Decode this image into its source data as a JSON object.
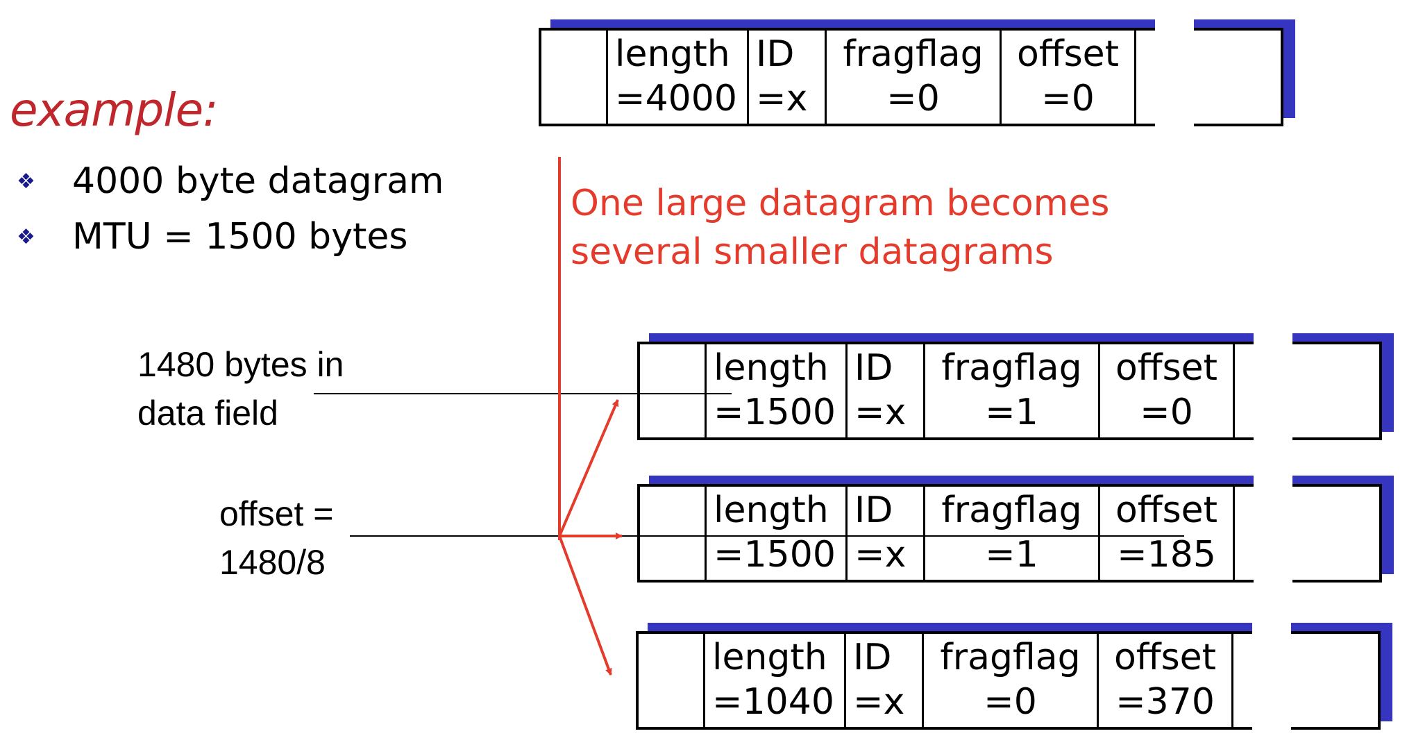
{
  "heading": "example:",
  "bullets": [
    "4000 byte datagram",
    "MTU = 1500 bytes"
  ],
  "bullet_icon": "diamond-bullet-icon",
  "note": [
    "One large datagram becomes",
    "several smaller datagrams"
  ],
  "annotations": {
    "data_field": [
      "1480 bytes in",
      "data field"
    ],
    "offset": [
      "offset =",
      "1480/8"
    ]
  },
  "original": {
    "length": [
      "length",
      "=4000"
    ],
    "id": [
      "ID",
      "=x"
    ],
    "fragflag": [
      "fragflag",
      "=0"
    ],
    "offset": [
      "offset",
      "=0"
    ]
  },
  "fragments": [
    {
      "length": [
        "length",
        "=1500"
      ],
      "id": [
        "ID",
        "=x"
      ],
      "fragflag": [
        "fragflag",
        "=1"
      ],
      "offset": [
        "offset",
        "=0"
      ]
    },
    {
      "length": [
        "length",
        "=1500"
      ],
      "id": [
        "ID",
        "=x"
      ],
      "fragflag": [
        "fragflag",
        "=1"
      ],
      "offset": [
        "offset",
        "=185"
      ]
    },
    {
      "length": [
        "length",
        "=1040"
      ],
      "id": [
        "ID",
        "=x"
      ],
      "fragflag": [
        "fragflag",
        "=0"
      ],
      "offset": [
        "offset",
        "=370"
      ]
    }
  ],
  "colors": {
    "accent_red": "#e53b2c",
    "title_red": "#c0272d",
    "shadow_blue": "#3535c0"
  }
}
